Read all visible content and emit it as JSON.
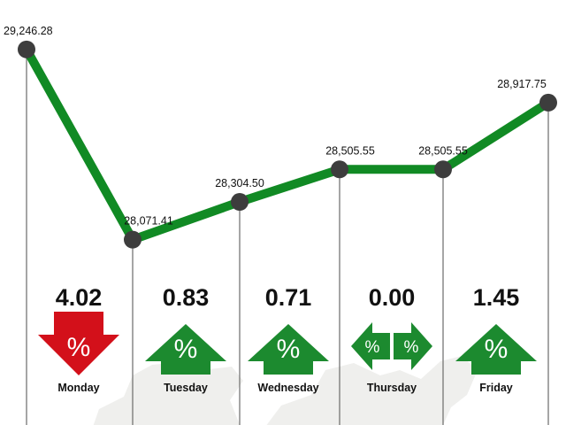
{
  "chart_data": {
    "type": "line",
    "categories": [
      "Monday",
      "Tuesday",
      "Wednesday",
      "Thursday",
      "Friday"
    ],
    "series": [
      {
        "points": [
          {
            "value": 29246.28,
            "label": "29,246.28"
          },
          {
            "value": 28071.41,
            "label": "28,071.41"
          },
          {
            "value": 28304.5,
            "label": "28,304.50"
          },
          {
            "value": 28505.55,
            "label": "28,505.55"
          },
          {
            "value": 28505.55,
            "label": "28,505.55"
          },
          {
            "value": 28917.75,
            "label": "28,917.75"
          }
        ]
      }
    ],
    "daily_change": [
      {
        "day": "Monday",
        "change": "4.02",
        "direction": "down",
        "symbol": "%"
      },
      {
        "day": "Tuesday",
        "change": "0.83",
        "direction": "up",
        "symbol": "%"
      },
      {
        "day": "Wednesday",
        "change": "0.71",
        "direction": "up",
        "symbol": "%"
      },
      {
        "day": "Thursday",
        "change": "0.00",
        "direction": "flat",
        "symbol": "%"
      },
      {
        "day": "Friday",
        "change": "1.45",
        "direction": "up",
        "symbol": "%"
      }
    ],
    "ylim": [
      27900,
      29300
    ],
    "grid": false,
    "legend": "none"
  },
  "colors": {
    "line": "#118a24",
    "marker": "#3d3d3d",
    "up": "#1c8a2f",
    "down": "#d3101a",
    "text": "#111111",
    "rule": "#6b6b6b",
    "map_shadow": "#efefed"
  }
}
